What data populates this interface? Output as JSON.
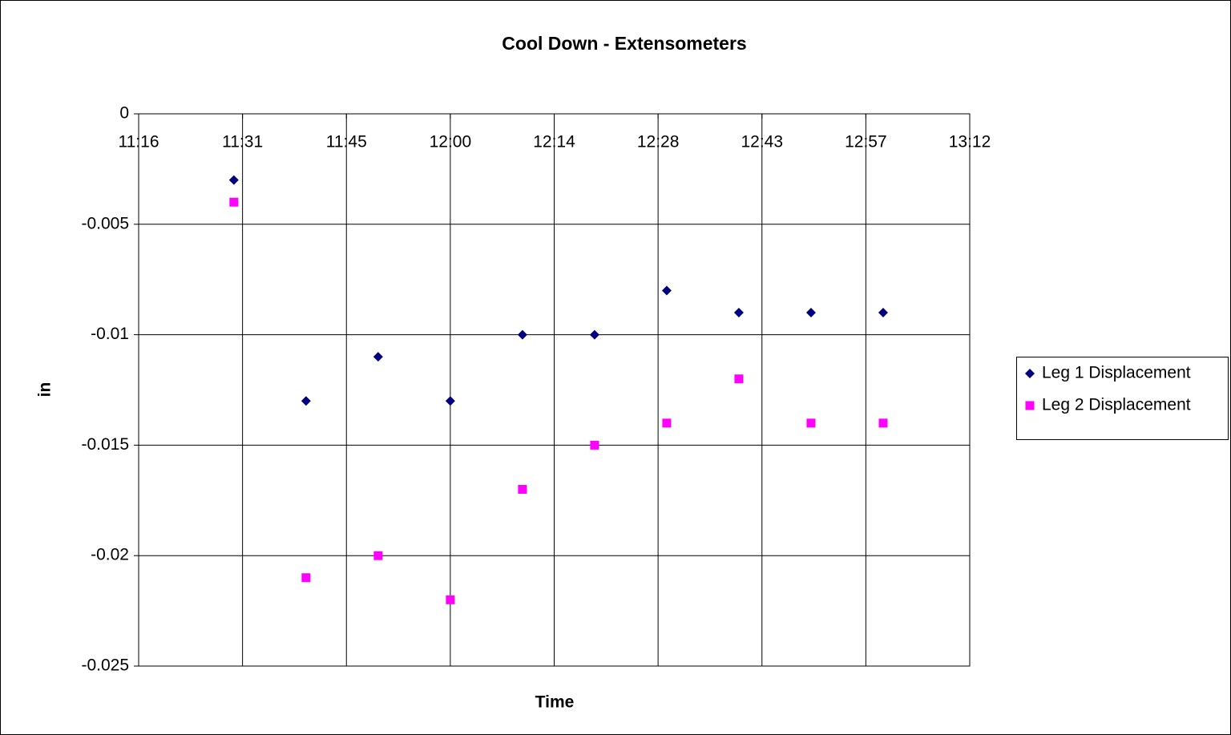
{
  "chart_data": {
    "type": "scatter",
    "title": "Cool Down  -  Extensometers",
    "xlabel": "Time",
    "ylabel": "in",
    "x": [
      690,
      700,
      710,
      720,
      730,
      740,
      750,
      760,
      770,
      780
    ],
    "series": [
      {
        "name": "Leg 1 Displacement",
        "color": "#000080",
        "marker": "diamond",
        "values": [
          -0.003,
          -0.013,
          -0.011,
          -0.013,
          -0.01,
          -0.01,
          -0.008,
          -0.009,
          -0.009,
          -0.009
        ]
      },
      {
        "name": "Leg 2 Displacement",
        "color": "#ff00ff",
        "marker": "square",
        "values": [
          -0.004,
          -0.021,
          -0.02,
          -0.022,
          -0.017,
          -0.015,
          -0.014,
          -0.012,
          -0.014,
          -0.014
        ]
      }
    ],
    "xlim": [
      676.8,
      792
    ],
    "xticks": [
      {
        "value": 676.8,
        "label": "11:16"
      },
      {
        "value": 691.2,
        "label": "11:31"
      },
      {
        "value": 705.6,
        "label": "11:45"
      },
      {
        "value": 720,
        "label": "12:00"
      },
      {
        "value": 734.4,
        "label": "12:14"
      },
      {
        "value": 748.8,
        "label": "12:28"
      },
      {
        "value": 763.2,
        "label": "12:43"
      },
      {
        "value": 777.6,
        "label": "12:57"
      },
      {
        "value": 792,
        "label": "13:12"
      }
    ],
    "ylim": [
      -0.025,
      0
    ],
    "yticks": [
      0,
      -0.005,
      -0.01,
      -0.015,
      -0.02,
      -0.025
    ],
    "grid": true,
    "legend": "right"
  }
}
